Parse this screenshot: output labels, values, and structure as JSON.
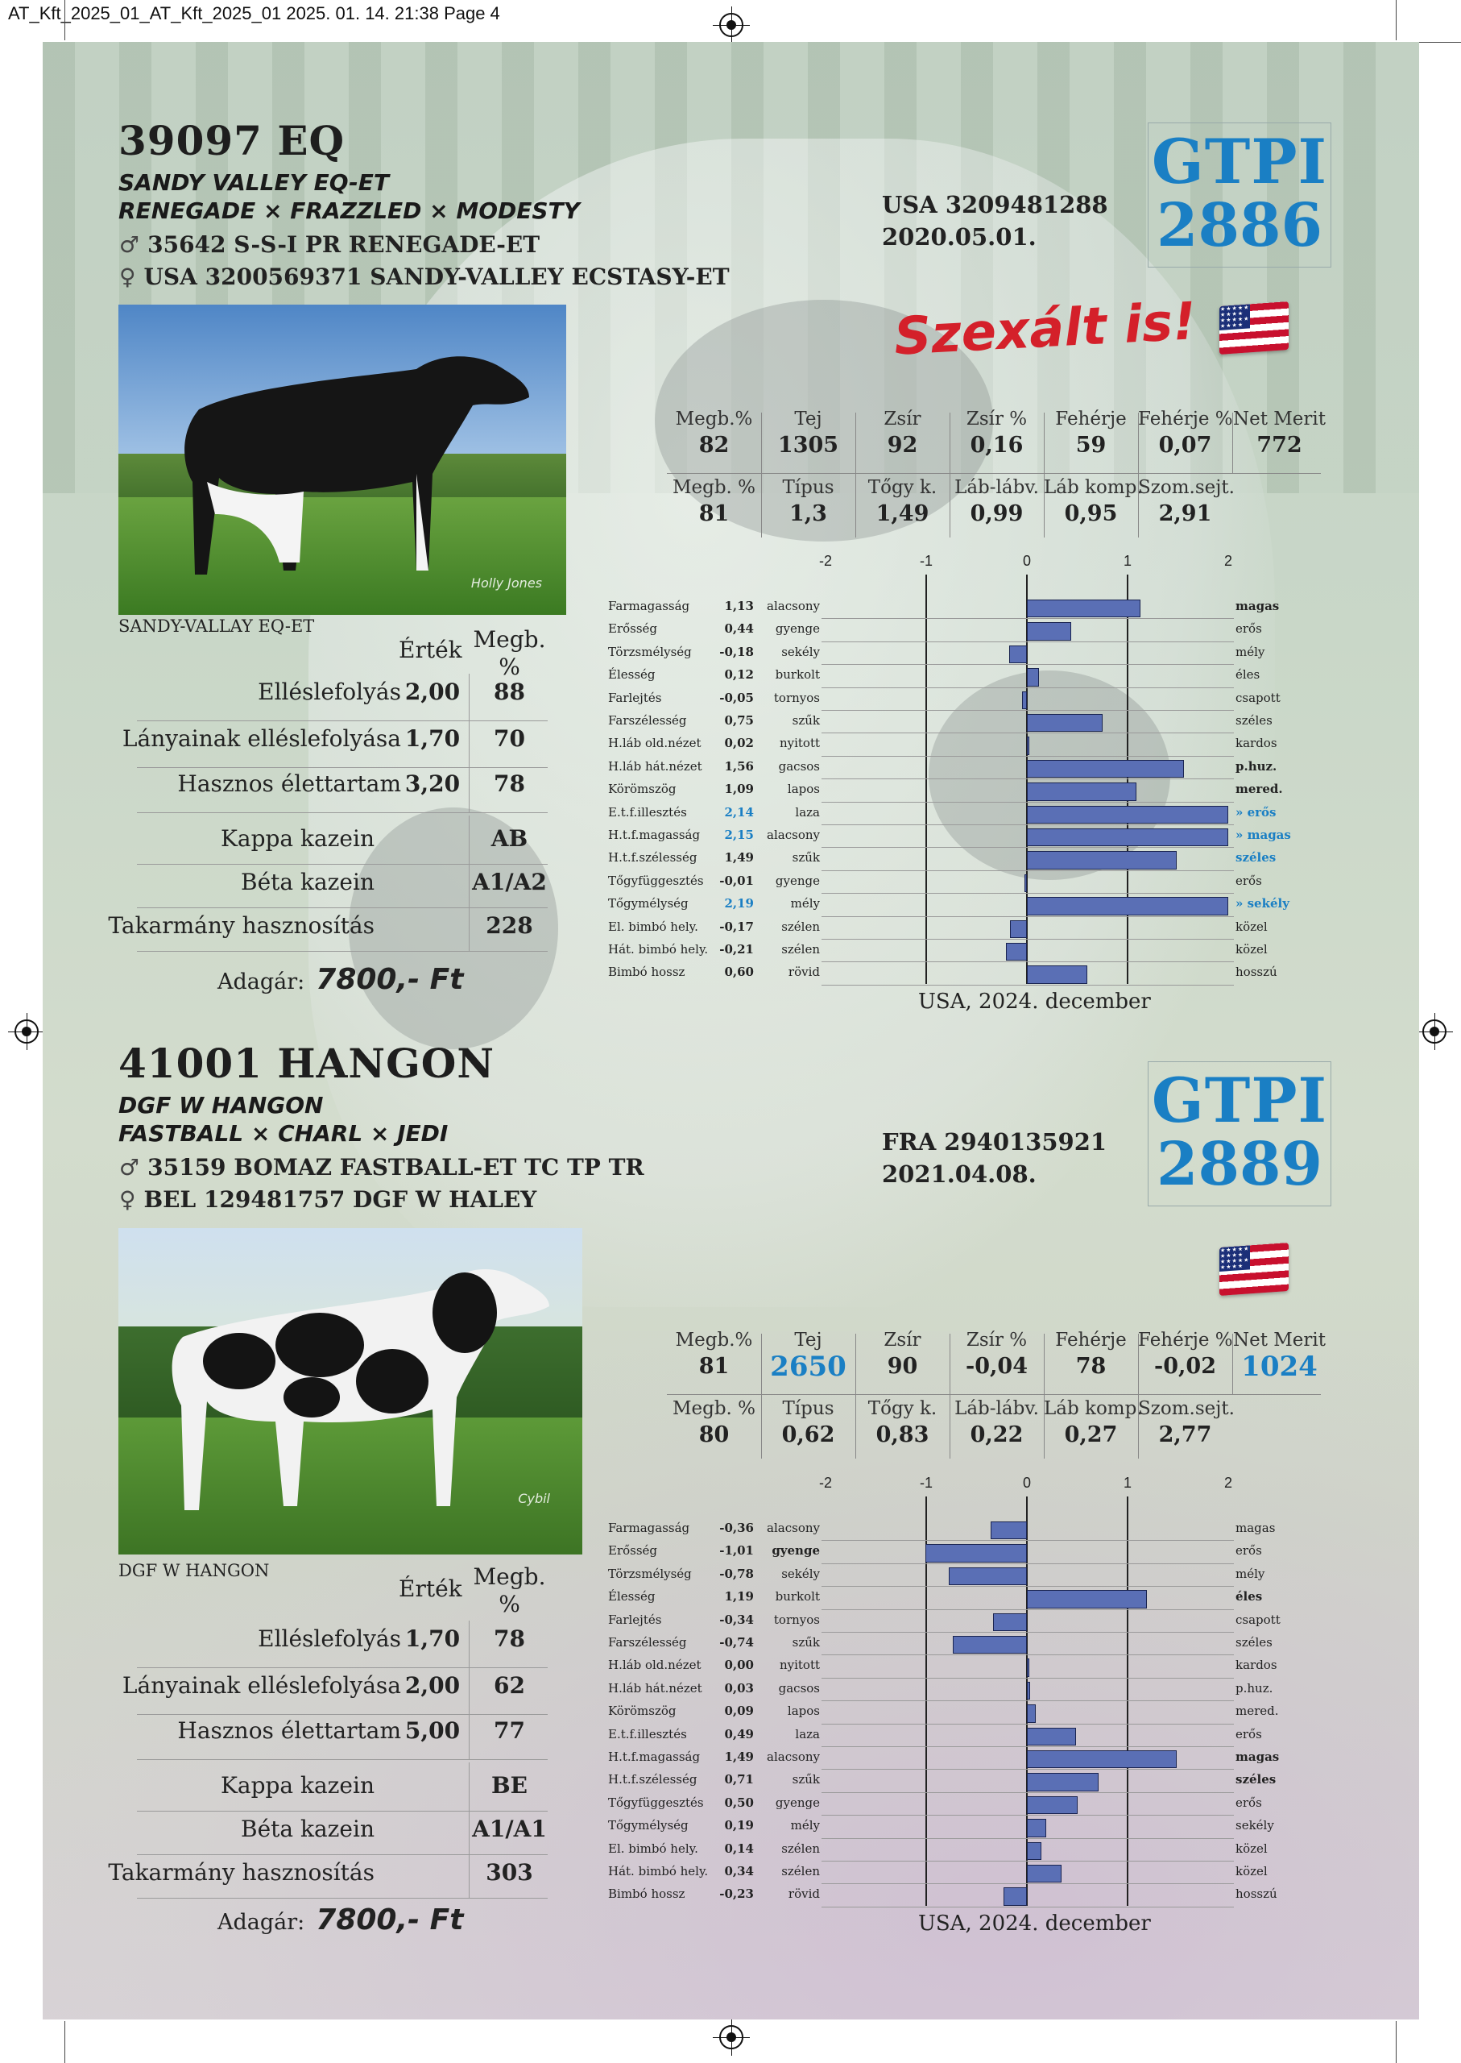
{
  "print_header": "AT_Kft_2025_01_AT_Kft_2025_01  2025. 01. 14.  21:38  Page 4",
  "bulls": [
    {
      "id": "39097 EQ",
      "name": "SANDY VALLEY EQ-ET",
      "pedigree": "RENEGADE × FRAZZLED × MODESTY",
      "sire_symbol": "♂",
      "sire": "35642 S-S-I PR RENEGADE-ET",
      "dam_symbol": "♀",
      "dam": "USA 3200569371 SANDY-VALLEY ECSTASY-ET",
      "reg_number": "USA 3209481288",
      "birth_date": "2020.05.01.",
      "gtpi_label": "GTPI",
      "gtpi_value": "2886",
      "flag_icon": "usa-flag-icon",
      "sexed_note": "Szexált is!",
      "photo_caption": "SANDY-VALLAY EQ-ET",
      "photo_signature": "Holly Jones",
      "table_headers": {
        "value": "Érték",
        "reliability": "Megb. %"
      },
      "traits": [
        {
          "label": "Elléslefolyás",
          "value": "2,00",
          "rel": "88"
        },
        {
          "label": "Lányainak elléslefolyása",
          "value": "1,70",
          "rel": "70"
        },
        {
          "label": "Hasznos élettartam",
          "value": "3,20",
          "rel": "78"
        }
      ],
      "genetics": [
        {
          "label": "Kappa kazein",
          "value": "AB"
        },
        {
          "label": "Béta kazein",
          "value": "A1/A2"
        },
        {
          "label": "Takarmány hasznosítás",
          "value": "228"
        }
      ],
      "price_label": "Adagár:",
      "price_value": "7800,- Ft",
      "production": [
        {
          "header": "Megb.%",
          "value": "82"
        },
        {
          "header": "Tej",
          "value": "1305"
        },
        {
          "header": "Zsír",
          "value": "92"
        },
        {
          "header": "Zsír %",
          "value": "0,16"
        },
        {
          "header": "Fehérje",
          "value": "59"
        },
        {
          "header": "Fehérje %",
          "value": "0,07"
        },
        {
          "header": "Net Merit",
          "value": "772"
        }
      ],
      "type_traits": [
        {
          "header": "Megb. %",
          "value": "81"
        },
        {
          "header": "Típus",
          "value": "1,3"
        },
        {
          "header": "Tőgy k.",
          "value": "1,49"
        },
        {
          "header": "Láb-lábv.",
          "value": "0,99"
        },
        {
          "header": "Láb komp.",
          "value": "0,95"
        },
        {
          "header": "Szom.sejt.",
          "value": "2,91"
        }
      ],
      "linear_axis": [
        "-2",
        "-1",
        "0",
        "1",
        "2"
      ],
      "linear": [
        {
          "name": "Farmagasság",
          "value": "1,13",
          "low": "alacsony",
          "high": "magas",
          "v": 1.13,
          "high_bold": true
        },
        {
          "name": "Erősség",
          "value": "0,44",
          "low": "gyenge",
          "high": "erős",
          "v": 0.44
        },
        {
          "name": "Törzsmélység",
          "value": "-0,18",
          "low": "sekély",
          "high": "mély",
          "v": -0.18
        },
        {
          "name": "Élesség",
          "value": "0,12",
          "low": "burkolt",
          "high": "éles",
          "v": 0.12
        },
        {
          "name": "Farlejtés",
          "value": "-0,05",
          "low": "tornyos",
          "high": "csapott",
          "v": -0.05
        },
        {
          "name": "Farszélesség",
          "value": "0,75",
          "low": "szűk",
          "high": "széles",
          "v": 0.75
        },
        {
          "name": "H.láb old.nézet",
          "value": "0,02",
          "low": "nyitott",
          "high": "kardos",
          "v": 0.02
        },
        {
          "name": "H.láb hát.nézet",
          "value": "1,56",
          "low": "gacsos",
          "high": "p.huz.",
          "v": 1.56,
          "high_bold": true
        },
        {
          "name": "Körömszög",
          "value": "1,09",
          "low": "lapos",
          "high": "mered.",
          "v": 1.09,
          "high_bold": true
        },
        {
          "name": "E.t.f.illesztés",
          "value": "2,14",
          "low": "laza",
          "high": "» erős",
          "v": 2.14,
          "hi": true
        },
        {
          "name": "H.t.f.magasság",
          "value": "2,15",
          "low": "alacsony",
          "high": "» magas",
          "v": 2.15,
          "hi": true
        },
        {
          "name": "H.t.f.szélesség",
          "value": "1,49",
          "low": "szűk",
          "high": "széles",
          "v": 1.49,
          "high_hi": true
        },
        {
          "name": "Tőgyfüggesztés",
          "value": "-0,01",
          "low": "gyenge",
          "high": "erős",
          "v": -0.01
        },
        {
          "name": "Tőgymélység",
          "value": "2,19",
          "low": "mély",
          "high": "» sekély",
          "v": 2.19,
          "hi": true
        },
        {
          "name": "El. bimbó hely.",
          "value": "-0,17",
          "low": "szélen",
          "high": "közel",
          "v": -0.17
        },
        {
          "name": "Hát. bimbó hely.",
          "value": "-0,21",
          "low": "szélen",
          "high": "közel",
          "v": -0.21
        },
        {
          "name": "Bimbó hossz",
          "value": "0,60",
          "low": "rövid",
          "high": "hosszú",
          "v": 0.6
        }
      ],
      "source_note": "USA, 2024. december"
    },
    {
      "id": "41001 HANGON",
      "name": "DGF W HANGON",
      "pedigree": "FASTBALL × CHARL × JEDI",
      "sire_symbol": "♂",
      "sire": "35159 BOMAZ FASTBALL-ET TC TP TR",
      "dam_symbol": "♀",
      "dam": "BEL 129481757 DGF W HALEY",
      "reg_number": "FRA 2940135921",
      "birth_date": "2021.04.08.",
      "gtpi_label": "GTPI",
      "gtpi_value": "2889",
      "flag_icon": "usa-flag-icon",
      "photo_caption": "DGF W HANGON",
      "photo_signature": "Cybil",
      "table_headers": {
        "value": "Érték",
        "reliability": "Megb. %"
      },
      "traits": [
        {
          "label": "Elléslefolyás",
          "value": "1,70",
          "rel": "78"
        },
        {
          "label": "Lányainak elléslefolyása",
          "value": "2,00",
          "rel": "62"
        },
        {
          "label": "Hasznos élettartam",
          "value": "5,00",
          "rel": "77"
        }
      ],
      "genetics": [
        {
          "label": "Kappa kazein",
          "value": "BE"
        },
        {
          "label": "Béta kazein",
          "value": "A1/A1"
        },
        {
          "label": "Takarmány hasznosítás",
          "value": "303"
        }
      ],
      "price_label": "Adagár:",
      "price_value": "7800,- Ft",
      "production": [
        {
          "header": "Megb.%",
          "value": "81"
        },
        {
          "header": "Tej",
          "value": "2650",
          "hi": true
        },
        {
          "header": "Zsír",
          "value": "90"
        },
        {
          "header": "Zsír %",
          "value": "-0,04"
        },
        {
          "header": "Fehérje",
          "value": "78"
        },
        {
          "header": "Fehérje %",
          "value": "-0,02"
        },
        {
          "header": "Net Merit",
          "value": "1024",
          "hi": true
        }
      ],
      "type_traits": [
        {
          "header": "Megb. %",
          "value": "80"
        },
        {
          "header": "Típus",
          "value": "0,62"
        },
        {
          "header": "Tőgy k.",
          "value": "0,83"
        },
        {
          "header": "Láb-lábv.",
          "value": "0,22"
        },
        {
          "header": "Láb komp.",
          "value": "0,27"
        },
        {
          "header": "Szom.sejt.",
          "value": "2,77"
        }
      ],
      "linear_axis": [
        "-2",
        "-1",
        "0",
        "1",
        "2"
      ],
      "linear": [
        {
          "name": "Farmagasság",
          "value": "-0,36",
          "low": "alacsony",
          "high": "magas",
          "v": -0.36
        },
        {
          "name": "Erősség",
          "value": "-1,01",
          "low": "gyenge",
          "high": "erős",
          "v": -1.01,
          "low_bold": true
        },
        {
          "name": "Törzsmélység",
          "value": "-0,78",
          "low": "sekély",
          "high": "mély",
          "v": -0.78
        },
        {
          "name": "Élesség",
          "value": "1,19",
          "low": "burkolt",
          "high": "éles",
          "v": 1.19,
          "high_bold": true
        },
        {
          "name": "Farlejtés",
          "value": "-0,34",
          "low": "tornyos",
          "high": "csapott",
          "v": -0.34
        },
        {
          "name": "Farszélesség",
          "value": "-0,74",
          "low": "szűk",
          "high": "széles",
          "v": -0.74
        },
        {
          "name": "H.láb old.nézet",
          "value": "0,00",
          "low": "nyitott",
          "high": "kardos",
          "v": 0.0
        },
        {
          "name": "H.láb hát.nézet",
          "value": "0,03",
          "low": "gacsos",
          "high": "p.huz.",
          "v": 0.03
        },
        {
          "name": "Körömszög",
          "value": "0,09",
          "low": "lapos",
          "high": "mered.",
          "v": 0.09
        },
        {
          "name": "E.t.f.illesztés",
          "value": "0,49",
          "low": "laza",
          "high": "erős",
          "v": 0.49
        },
        {
          "name": "H.t.f.magasság",
          "value": "1,49",
          "low": "alacsony",
          "high": "magas",
          "v": 1.49,
          "high_bold": true
        },
        {
          "name": "H.t.f.szélesség",
          "value": "0,71",
          "low": "szűk",
          "high": "széles",
          "v": 0.71,
          "high_bold": true
        },
        {
          "name": "Tőgyfüggesztés",
          "value": "0,50",
          "low": "gyenge",
          "high": "erős",
          "v": 0.5
        },
        {
          "name": "Tőgymélység",
          "value": "0,19",
          "low": "mély",
          "high": "sekély",
          "v": 0.19
        },
        {
          "name": "El. bimbó hely.",
          "value": "0,14",
          "low": "szélen",
          "high": "közel",
          "v": 0.14
        },
        {
          "name": "Hát. bimbó hely.",
          "value": "0,34",
          "low": "szélen",
          "high": "közel",
          "v": 0.34
        },
        {
          "name": "Bimbó hossz",
          "value": "-0,23",
          "low": "rövid",
          "high": "hosszú",
          "v": -0.23
        }
      ],
      "source_note": "USA, 2024. december"
    }
  ],
  "colors": {
    "accent_blue": "#1a7fc4",
    "bar_fill": "#5a6fb5",
    "sexed_red": "#d4202a"
  }
}
